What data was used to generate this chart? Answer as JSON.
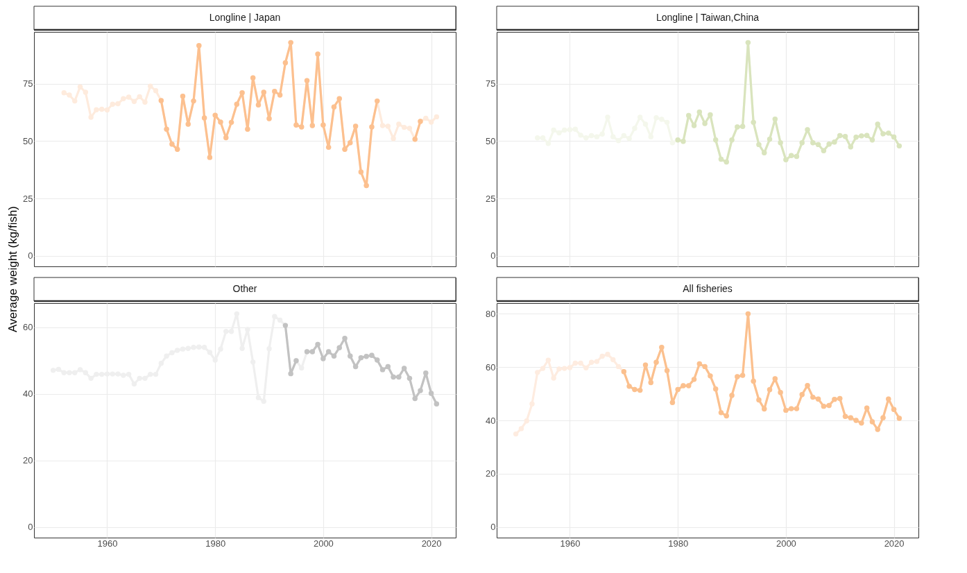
{
  "chart_data": [
    {
      "type": "line",
      "title": "Longline | Japan",
      "ylabel": "Average weight (kg/fish)",
      "x": [
        1952,
        1953,
        1954,
        1955,
        1956,
        1957,
        1958,
        1959,
        1960,
        1961,
        1962,
        1963,
        1964,
        1965,
        1966,
        1967,
        1968,
        1969,
        1970,
        1971,
        1972,
        1973,
        1974,
        1975,
        1976,
        1977,
        1978,
        1979,
        1980,
        1981,
        1982,
        1983,
        1984,
        1985,
        1986,
        1987,
        1988,
        1989,
        1990,
        1991,
        1992,
        1993,
        1994,
        1995,
        1996,
        1997,
        1998,
        1999,
        2000,
        2001,
        2002,
        2003,
        2004,
        2005,
        2006,
        2007,
        2008,
        2009,
        2010,
        2011,
        2012,
        2013,
        2014,
        2015,
        2016,
        2017,
        2018,
        2019,
        2020,
        2021
      ],
      "xlim": [
        1946.45,
        2024.55
      ],
      "xticks": [
        1960,
        1980,
        2000,
        2020
      ],
      "ylim": [
        -4.65,
        97.65
      ],
      "yticks": [
        0,
        25,
        50,
        75
      ],
      "grid": true,
      "marker": "circle",
      "tick_labels": "y",
      "series": [
        {
          "color": "#feebdd",
          "values": [
            71.1,
            70.1,
            67.5,
            73.7,
            71.3,
            60.4,
            63.7,
            63.9,
            63.6,
            66.1,
            66.3,
            68.5,
            69.2,
            67.3,
            69.4,
            67.0,
            74.0,
            72.0,
            67.7,
            55.2,
            48.7,
            46.4,
            69.6,
            57.4,
            67.5,
            91.7,
            60.1,
            42.9,
            61.3,
            58.3,
            51.5,
            58.2,
            66.1,
            71.1,
            55.2,
            77.6,
            65.8,
            71.3,
            59.8,
            71.7,
            70.1,
            84.2,
            93.0,
            57.0,
            56.2,
            76.4,
            56.8,
            88.0,
            57.0,
            47.3,
            64.9,
            68.5,
            46.4,
            49.3,
            56.5,
            36.5,
            30.6,
            56.2,
            67.5,
            56.8,
            56.5,
            51.1,
            57.4,
            56.0,
            55.6,
            50.8,
            58.6,
            60.0,
            58.3,
            60.6
          ]
        },
        {
          "color": "#fcc08f",
          "values": [
            null,
            null,
            null,
            null,
            null,
            null,
            null,
            null,
            null,
            null,
            null,
            null,
            null,
            null,
            null,
            null,
            null,
            null,
            67.7,
            55.2,
            48.7,
            46.4,
            69.6,
            57.4,
            67.5,
            91.7,
            60.1,
            42.9,
            61.3,
            58.3,
            51.5,
            58.2,
            66.1,
            71.1,
            55.2,
            77.6,
            65.8,
            71.3,
            59.8,
            71.7,
            70.1,
            84.2,
            93.0,
            57.0,
            56.2,
            76.4,
            56.8,
            88.0,
            57.0,
            47.3,
            64.9,
            68.5,
            46.4,
            49.3,
            56.5,
            36.5,
            30.6,
            56.2,
            67.5,
            null,
            null,
            null,
            null,
            null,
            null,
            50.8,
            58.6,
            null,
            null,
            null
          ]
        }
      ]
    },
    {
      "type": "line",
      "title": "Longline | Taiwan,China",
      "x": [
        1954,
        1955,
        1956,
        1957,
        1958,
        1959,
        1960,
        1961,
        1962,
        1963,
        1964,
        1965,
        1966,
        1967,
        1968,
        1969,
        1970,
        1971,
        1972,
        1973,
        1974,
        1975,
        1976,
        1977,
        1978,
        1979,
        1980,
        1981,
        1982,
        1983,
        1984,
        1985,
        1986,
        1987,
        1988,
        1989,
        1990,
        1991,
        1992,
        1993,
        1994,
        1995,
        1996,
        1997,
        1998,
        1999,
        2000,
        2001,
        2002,
        2003,
        2004,
        2005,
        2006,
        2007,
        2008,
        2009,
        2010,
        2011,
        2012,
        2013,
        2014,
        2015,
        2016,
        2017,
        2018,
        2019,
        2020,
        2021
      ],
      "xlim": [
        1946.45,
        2024.55
      ],
      "xticks": [
        1960,
        1980,
        2000,
        2020
      ],
      "ylim": [
        -4.65,
        97.65
      ],
      "yticks": [
        0,
        25,
        50,
        75
      ],
      "grid": true,
      "marker": "circle",
      "tick_labels": "y",
      "series": [
        {
          "color": "#f4f7ec",
          "values": [
            51.4,
            51.4,
            49.0,
            54.8,
            53.6,
            54.8,
            55.0,
            55.2,
            52.6,
            51.4,
            52.4,
            51.9,
            53.1,
            60.4,
            51.9,
            50.2,
            52.4,
            51.1,
            55.6,
            60.4,
            57.4,
            51.9,
            60.2,
            59.5,
            58.2,
            49.3,
            50.5,
            49.9,
            61.2,
            56.8,
            62.7,
            57.7,
            61.5,
            50.5,
            42.1,
            40.9,
            50.5,
            56.2,
            56.4,
            93.0,
            58.2,
            48.5,
            44.9,
            50.8,
            59.6,
            49.3,
            41.9,
            43.7,
            43.3,
            49.3,
            55.0,
            49.3,
            48.5,
            45.8,
            48.7,
            49.6,
            52.4,
            52.0,
            47.5,
            51.7,
            52.3,
            52.5,
            50.5,
            57.4,
            53.2,
            53.5,
            51.8,
            47.9
          ]
        },
        {
          "color": "#d9e4bd",
          "values": [
            null,
            null,
            null,
            null,
            null,
            null,
            null,
            null,
            null,
            null,
            null,
            null,
            null,
            null,
            null,
            null,
            null,
            null,
            null,
            null,
            null,
            null,
            null,
            null,
            null,
            null,
            50.5,
            49.9,
            61.2,
            56.8,
            62.7,
            57.7,
            61.5,
            50.5,
            42.1,
            40.9,
            50.5,
            56.2,
            56.4,
            93.0,
            58.2,
            48.5,
            44.9,
            50.8,
            59.6,
            49.3,
            41.9,
            43.7,
            43.3,
            49.3,
            55.0,
            49.3,
            48.5,
            45.8,
            48.7,
            49.6,
            52.4,
            52.0,
            47.5,
            51.7,
            52.3,
            52.5,
            50.5,
            57.4,
            53.2,
            53.5,
            51.8,
            47.9
          ]
        }
      ]
    },
    {
      "type": "line",
      "title": "Other",
      "x": [
        1950,
        1951,
        1952,
        1953,
        1954,
        1955,
        1956,
        1957,
        1958,
        1959,
        1960,
        1961,
        1962,
        1963,
        1964,
        1965,
        1966,
        1967,
        1968,
        1969,
        1970,
        1971,
        1972,
        1973,
        1974,
        1975,
        1976,
        1977,
        1978,
        1979,
        1980,
        1981,
        1982,
        1983,
        1984,
        1985,
        1986,
        1987,
        1988,
        1989,
        1990,
        1991,
        1992,
        1993,
        1994,
        1995,
        1996,
        1997,
        1998,
        1999,
        2000,
        2001,
        2002,
        2003,
        2004,
        2005,
        2006,
        2007,
        2008,
        2009,
        2010,
        2011,
        2012,
        2013,
        2014,
        2015,
        2016,
        2017,
        2018,
        2019,
        2020,
        2021
      ],
      "xlim": [
        1946.45,
        2024.55
      ],
      "xticks": [
        1960,
        1980,
        2000,
        2020
      ],
      "ylim": [
        -3.2,
        67.3
      ],
      "yticks": [
        0,
        20,
        40,
        60
      ],
      "grid": true,
      "marker": "circle",
      "series": [
        {
          "color": "#efefef",
          "values": [
            47.1,
            47.4,
            46.4,
            46.4,
            46.4,
            47.3,
            46.4,
            44.7,
            45.9,
            45.9,
            46.0,
            46.0,
            46.0,
            45.6,
            45.9,
            43.0,
            44.7,
            44.7,
            45.9,
            45.9,
            49.2,
            51.4,
            52.4,
            53.1,
            53.5,
            53.7,
            54.0,
            54.1,
            54.0,
            52.5,
            50.2,
            53.5,
            58.8,
            58.8,
            64.1,
            53.7,
            59.4,
            49.6,
            38.9,
            37.8,
            53.6,
            63.3,
            62.2,
            60.6,
            46.1,
            50.0,
            47.8,
            52.7,
            52.7,
            54.9,
            50.6,
            52.7,
            51.4,
            53.9,
            56.7,
            51.4,
            48.2,
            50.9,
            51.3,
            51.6,
            50.2,
            47.3,
            48.2,
            45.1,
            45.1,
            47.7,
            44.7,
            38.6,
            41.0,
            46.3,
            40.2,
            37.0
          ]
        },
        {
          "color": "#c2c2c2",
          "values": [
            null,
            null,
            null,
            null,
            null,
            null,
            null,
            null,
            null,
            null,
            null,
            null,
            null,
            null,
            null,
            null,
            null,
            null,
            null,
            null,
            null,
            null,
            null,
            null,
            null,
            null,
            null,
            null,
            null,
            null,
            null,
            null,
            null,
            null,
            null,
            null,
            null,
            null,
            null,
            null,
            null,
            null,
            null,
            60.6,
            46.1,
            50.0,
            null,
            52.7,
            52.7,
            54.9,
            50.6,
            52.7,
            51.4,
            53.9,
            56.7,
            51.4,
            48.2,
            50.9,
            51.3,
            51.6,
            50.2,
            47.3,
            48.2,
            45.1,
            45.1,
            47.7,
            44.7,
            38.6,
            41.0,
            46.3,
            40.2,
            37.0
          ]
        }
      ]
    },
    {
      "type": "line",
      "title": "All fisheries",
      "x": [
        1950,
        1951,
        1952,
        1953,
        1954,
        1955,
        1956,
        1957,
        1958,
        1959,
        1960,
        1961,
        1962,
        1963,
        1964,
        1965,
        1966,
        1967,
        1968,
        1969,
        1970,
        1971,
        1972,
        1973,
        1974,
        1975,
        1976,
        1977,
        1978,
        1979,
        1980,
        1981,
        1982,
        1983,
        1984,
        1985,
        1986,
        1987,
        1988,
        1989,
        1990,
        1991,
        1992,
        1993,
        1994,
        1995,
        1996,
        1997,
        1998,
        1999,
        2000,
        2001,
        2002,
        2003,
        2004,
        2005,
        2006,
        2007,
        2008,
        2009,
        2010,
        2011,
        2012,
        2013,
        2014,
        2015,
        2016,
        2017,
        2018,
        2019,
        2020,
        2021
      ],
      "xlim": [
        1946.45,
        2024.55
      ],
      "xticks": [
        1960,
        1980,
        2000,
        2020
      ],
      "ylim": [
        -4,
        84
      ],
      "yticks": [
        0,
        20,
        40,
        60,
        80
      ],
      "grid": true,
      "marker": "circle",
      "series": [
        {
          "color": "#feece0",
          "values": [
            34.9,
            36.9,
            39.8,
            46.2,
            58.0,
            59.5,
            62.6,
            55.9,
            59.3,
            59.5,
            59.8,
            61.5,
            61.5,
            59.7,
            61.8,
            62.1,
            64.1,
            64.8,
            62.8,
            60.2,
            58.3,
            52.8,
            51.6,
            51.3,
            60.8,
            54.2,
            61.8,
            67.4,
            58.7,
            46.7,
            51.6,
            53.0,
            53.0,
            55.4,
            61.2,
            60.2,
            56.7,
            51.8,
            42.9,
            41.7,
            49.4,
            56.4,
            56.9,
            80.0,
            54.7,
            47.7,
            44.3,
            51.5,
            55.6,
            50.5,
            43.8,
            44.4,
            44.4,
            49.7,
            53.1,
            48.7,
            48.0,
            45.3,
            45.6,
            47.9,
            48.2,
            41.5,
            41.0,
            40.0,
            39.0,
            44.6,
            39.5,
            36.6,
            41.0,
            48.0,
            44.1,
            40.8
          ]
        },
        {
          "color": "#fbc08e",
          "values": [
            null,
            null,
            null,
            null,
            null,
            null,
            null,
            null,
            null,
            null,
            null,
            null,
            null,
            null,
            null,
            null,
            null,
            null,
            null,
            null,
            58.3,
            52.8,
            51.6,
            51.3,
            60.8,
            54.2,
            61.8,
            67.4,
            58.7,
            46.7,
            51.6,
            53.0,
            53.0,
            55.4,
            61.2,
            60.2,
            56.7,
            51.8,
            42.9,
            41.7,
            49.4,
            56.4,
            56.9,
            80.0,
            54.7,
            47.7,
            44.3,
            51.5,
            55.6,
            50.5,
            43.8,
            44.4,
            44.4,
            49.7,
            53.1,
            48.7,
            48.0,
            45.3,
            45.6,
            47.9,
            48.2,
            41.5,
            41.0,
            40.0,
            39.0,
            44.6,
            39.5,
            36.6,
            41.0,
            48.0,
            44.1,
            40.8
          ]
        }
      ]
    }
  ]
}
